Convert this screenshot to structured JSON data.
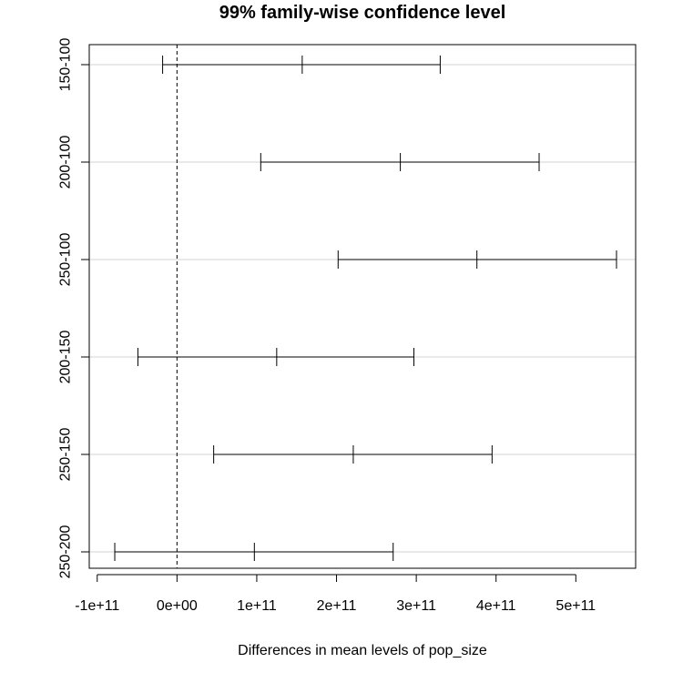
{
  "chart_data": {
    "type": "interval",
    "title": "99% family-wise confidence level",
    "xlabel": "Differences in mean levels of pop_size",
    "ylabel": "",
    "xlim": [
      -110000000000.0,
      575000000000.0
    ],
    "xticks": [
      {
        "value": -100000000000.0,
        "label": "-1e+11"
      },
      {
        "value": 0,
        "label": "0e+00"
      },
      {
        "value": 100000000000.0,
        "label": "1e+11"
      },
      {
        "value": 200000000000.0,
        "label": "2e+11"
      },
      {
        "value": 300000000000.0,
        "label": "3e+11"
      },
      {
        "value": 400000000000.0,
        "label": "4e+11"
      },
      {
        "value": 500000000000.0,
        "label": "5e+11"
      }
    ],
    "reference_line": 0,
    "grid": "horizontal",
    "intervals": [
      {
        "label": "150-100",
        "lower": -18000000000.0,
        "estimate": 157000000000.0,
        "upper": 330000000000.0
      },
      {
        "label": "200-100",
        "lower": 105000000000.0,
        "estimate": 280000000000.0,
        "upper": 454000000000.0
      },
      {
        "label": "250-100",
        "lower": 202000000000.0,
        "estimate": 376000000000.0,
        "upper": 551000000000.0
      },
      {
        "label": "200-150",
        "lower": -49000000000.0,
        "estimate": 125000000000.0,
        "upper": 297000000000.0
      },
      {
        "label": "250-150",
        "lower": 46000000000.0,
        "estimate": 221000000000.0,
        "upper": 395000000000.0
      },
      {
        "label": "250-200",
        "lower": -78000000000.0,
        "estimate": 97000000000.0,
        "upper": 271000000000.0
      }
    ]
  }
}
